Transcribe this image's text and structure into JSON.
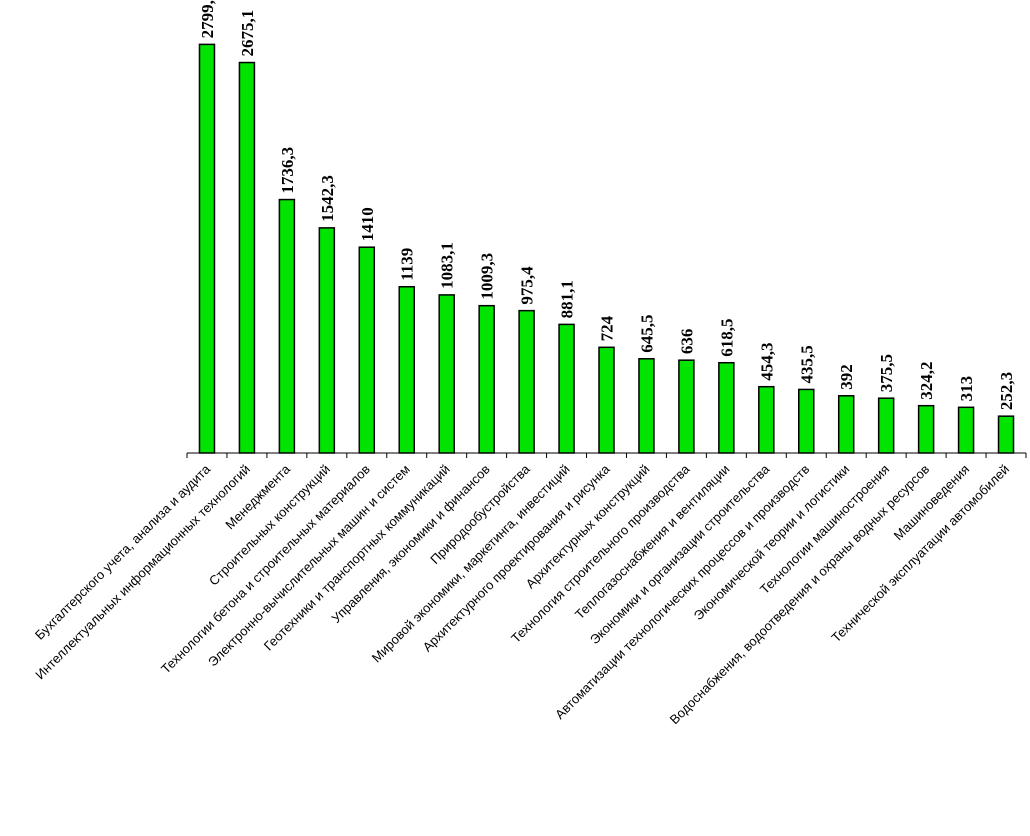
{
  "chart_data": {
    "type": "bar",
    "categories": [
      "Бухгалтерского учета, анализа и аудита",
      "Интеллектуальных  информационных  технологий",
      "Менеджмента",
      "Строительных  конструкций",
      "Технологии бетона и строительных  материалов",
      "Электронно-вычислительных  машин и систем",
      "Геотехники и транспортных коммуникаций",
      "Управления, экономики и финансов",
      "Природообустройства",
      "Мировой экономики,  маркетинга,  инвестиций",
      "Архитектурного  проектирования  и рисунка",
      "Архитектурных  конструкций",
      "Технология  строительного  производства",
      "Теплогазоснабжения  и вентиляции",
      "Экономики и организации  строительства",
      "Автоматизации  технологических  процессов и производств",
      "Экономической теории и логистики",
      "Технологии машиностроения",
      "Водоснабжения,  водоотведения  и охраны водных ресурсов",
      "Машиноведения",
      "Технической эксплуатации  автомобилей"
    ],
    "values": [
      2799.5,
      2675.1,
      1736.3,
      1542.3,
      1410,
      1139,
      1083.1,
      1009.3,
      975.4,
      881.1,
      724,
      645.5,
      636,
      618.5,
      454.3,
      435.5,
      392,
      375.5,
      324.2,
      313,
      252.3
    ],
    "value_labels": [
      "2799,5",
      "2675,1",
      "1736,3",
      "1542,3",
      "1410",
      "1139",
      "1083,1",
      "1009,3",
      "975,4",
      "881,1",
      "724",
      "645,5",
      "636",
      "618,5",
      "454,3",
      "435,5",
      "392",
      "375,5",
      "324,2",
      "313",
      "252,3"
    ],
    "title": "",
    "xlabel": "",
    "ylabel": "",
    "ylim": [
      0,
      2850
    ],
    "grid": false,
    "legend": "none",
    "bar_color": "#00e400",
    "bar_edge_color": "#000000"
  }
}
